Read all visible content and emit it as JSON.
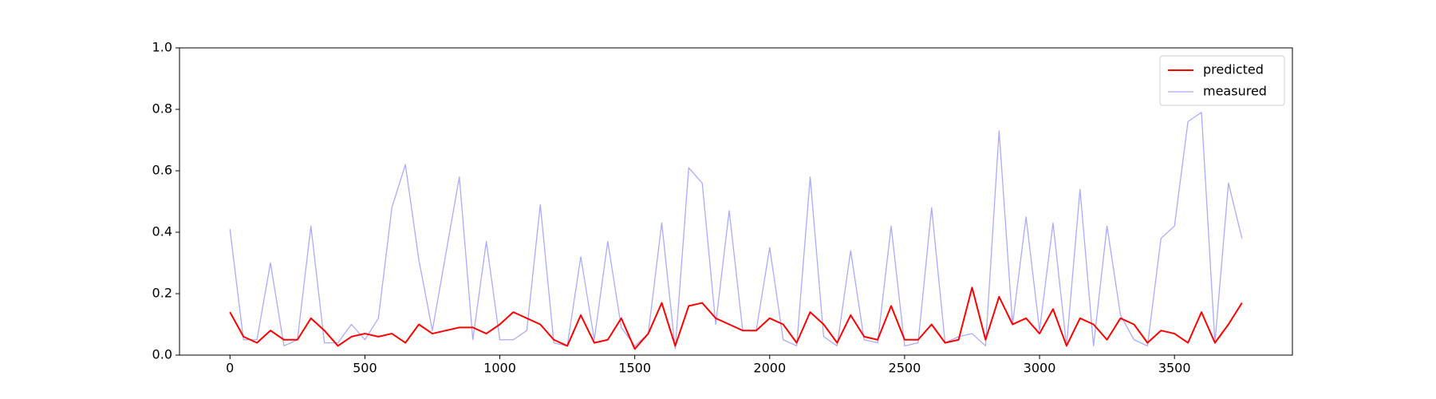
{
  "chart_data": {
    "type": "line",
    "x": [
      0,
      50,
      100,
      150,
      200,
      250,
      300,
      350,
      400,
      450,
      500,
      550,
      600,
      650,
      700,
      750,
      800,
      850,
      900,
      950,
      1000,
      1050,
      1100,
      1150,
      1200,
      1250,
      1300,
      1350,
      1400,
      1450,
      1500,
      1550,
      1600,
      1650,
      1700,
      1750,
      1800,
      1850,
      1900,
      1950,
      2000,
      2050,
      2100,
      2150,
      2200,
      2250,
      2300,
      2350,
      2400,
      2450,
      2500,
      2550,
      2600,
      2650,
      2700,
      2750,
      2800,
      2850,
      2900,
      2950,
      3000,
      3050,
      3100,
      3150,
      3200,
      3250,
      3300,
      3350,
      3400,
      3450,
      3500,
      3550,
      3600,
      3650,
      3700,
      3750
    ],
    "series": [
      {
        "name": "predicted",
        "color": "#ff0000",
        "width": 2,
        "values": [
          0.14,
          0.06,
          0.04,
          0.08,
          0.05,
          0.05,
          0.12,
          0.08,
          0.03,
          0.06,
          0.07,
          0.06,
          0.07,
          0.04,
          0.1,
          0.07,
          0.08,
          0.09,
          0.09,
          0.07,
          0.1,
          0.14,
          0.12,
          0.1,
          0.05,
          0.03,
          0.13,
          0.04,
          0.05,
          0.12,
          0.02,
          0.07,
          0.17,
          0.03,
          0.16,
          0.17,
          0.12,
          0.1,
          0.08,
          0.08,
          0.12,
          0.1,
          0.04,
          0.14,
          0.1,
          0.04,
          0.13,
          0.06,
          0.05,
          0.16,
          0.05,
          0.05,
          0.1,
          0.04,
          0.05,
          0.22,
          0.05,
          0.19,
          0.1,
          0.12,
          0.07,
          0.15,
          0.03,
          0.12,
          0.1,
          0.05,
          0.12,
          0.1,
          0.04,
          0.08,
          0.07,
          0.04,
          0.14,
          0.04,
          0.1,
          0.17
        ]
      },
      {
        "name": "measured",
        "color": "#aaaaff",
        "width": 1.3,
        "values": [
          0.41,
          0.05,
          0.05,
          0.3,
          0.03,
          0.05,
          0.42,
          0.04,
          0.04,
          0.1,
          0.05,
          0.12,
          0.48,
          0.62,
          0.31,
          0.08,
          0.33,
          0.58,
          0.05,
          0.37,
          0.05,
          0.05,
          0.08,
          0.49,
          0.04,
          0.03,
          0.32,
          0.05,
          0.37,
          0.09,
          0.03,
          0.07,
          0.43,
          0.02,
          0.61,
          0.56,
          0.1,
          0.47,
          0.08,
          0.08,
          0.35,
          0.05,
          0.03,
          0.58,
          0.06,
          0.03,
          0.34,
          0.05,
          0.04,
          0.42,
          0.03,
          0.04,
          0.48,
          0.04,
          0.06,
          0.07,
          0.03,
          0.73,
          0.1,
          0.45,
          0.08,
          0.43,
          0.03,
          0.54,
          0.03,
          0.42,
          0.13,
          0.05,
          0.03,
          0.38,
          0.42,
          0.76,
          0.79,
          0.04,
          0.56,
          0.38
        ]
      }
    ],
    "xlim": [
      -187,
      3937
    ],
    "xticks": [
      0,
      500,
      1000,
      1500,
      2000,
      2500,
      3000,
      3500
    ],
    "ylim": [
      0,
      1
    ],
    "yticks": [
      {
        "value": 0,
        "label": "0.0"
      },
      0.2,
      0.4,
      0.6,
      0.8,
      {
        "value": 1,
        "label": "1.0"
      }
    ],
    "legend": "upper right"
  }
}
